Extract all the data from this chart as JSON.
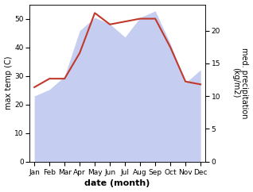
{
  "months": [
    "Jan",
    "Feb",
    "Mar",
    "Apr",
    "May",
    "Jun",
    "Jul",
    "Aug",
    "Sep",
    "Oct",
    "Nov",
    "Dec"
  ],
  "temp_C": [
    26,
    29,
    29,
    38,
    52,
    48,
    49,
    50,
    50,
    40,
    28,
    27
  ],
  "precip_kg": [
    10,
    11,
    13,
    20,
    22,
    21,
    19,
    22,
    23,
    18,
    12,
    14
  ],
  "temp_color": "#c0392b",
  "precip_fill_color": "#c5cdf0",
  "precip_line_color": "#a0a8e0",
  "ylabel_left": "max temp (C)",
  "ylabel_right": "med. precipitation\n(kg/m2)",
  "xlabel": "date (month)",
  "ylim_left": [
    0,
    55
  ],
  "ylim_right": [
    0,
    24
  ],
  "left_yticks": [
    0,
    10,
    20,
    30,
    40,
    50
  ],
  "right_yticks": [
    0,
    5,
    10,
    15,
    20
  ],
  "bg_color": "#ffffff",
  "label_fontsize": 7,
  "tick_fontsize": 6.5,
  "xlabel_fontsize": 8,
  "temp_linewidth": 1.5
}
